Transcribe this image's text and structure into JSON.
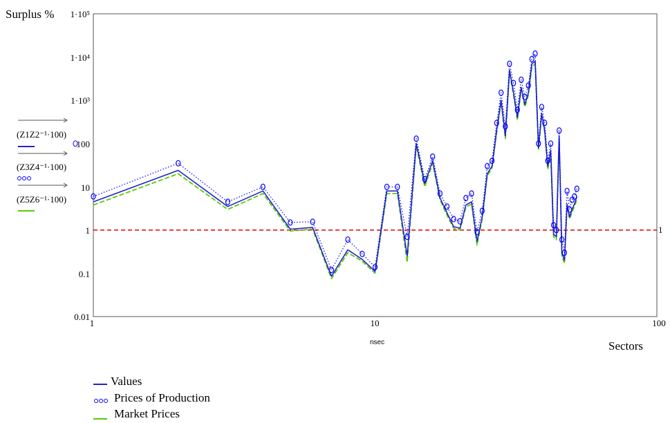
{
  "chart_data": {
    "type": "line",
    "title": "Surplus %",
    "xlabel": "Sectors",
    "x_var_label": "nsec",
    "xscale": "log",
    "yscale": "log",
    "xlim": [
      1,
      100
    ],
    "ylim": [
      0.01,
      100000
    ],
    "x_ticks": [
      "1",
      "10",
      "100"
    ],
    "y_ticks": [
      "0.01",
      "0.1",
      "1",
      "10",
      "100",
      "1·10³",
      "1·10⁴",
      "1·10⁵"
    ],
    "reference_line": {
      "y": 1,
      "color": "#e00000",
      "style": "dashed",
      "label": "1"
    },
    "y_trace_labels": [
      "(Z1Z2⁻¹·100)",
      "(Z3Z4⁻¹·100)",
      "(Z5Z6⁻¹·100)"
    ],
    "legend_position": "bottom-left",
    "series": [
      {
        "name": "Values",
        "color": "#2222cc",
        "style": "solid",
        "x": [
          1,
          2,
          3,
          4,
          5,
          6,
          7,
          8,
          9,
          10,
          11,
          12,
          13,
          14,
          15,
          16,
          17,
          18,
          19,
          20,
          21,
          22,
          23,
          24,
          25,
          26,
          27,
          28,
          29,
          30,
          31,
          32,
          33,
          34,
          35,
          36,
          37,
          38,
          39,
          40,
          41,
          42,
          43,
          44,
          45,
          46,
          47,
          48,
          49,
          50,
          51,
          52
        ],
        "y": [
          4.5,
          24,
          3.5,
          8,
          1.05,
          1.15,
          0.085,
          0.35,
          0.21,
          0.11,
          8,
          8,
          0.25,
          100,
          12,
          40,
          5.5,
          2.5,
          1.2,
          1.1,
          3.8,
          4.5,
          0.55,
          2,
          20,
          30,
          200,
          1000,
          150,
          5000,
          1500,
          400,
          2000,
          800,
          1500,
          7000,
          8000,
          80,
          500,
          200,
          30,
          70,
          0.8,
          0.7,
          150,
          0.3,
          0.2,
          4,
          2,
          3,
          4,
          6
        ]
      },
      {
        "name": "Prices of Production",
        "color": "#0000ff",
        "style": "dotted-circles",
        "x": [
          1,
          2,
          3,
          4,
          5,
          6,
          7,
          8,
          9,
          10,
          11,
          12,
          13,
          14,
          15,
          16,
          17,
          18,
          19,
          20,
          21,
          22,
          23,
          24,
          25,
          26,
          27,
          28,
          29,
          30,
          31,
          32,
          33,
          34,
          35,
          36,
          37,
          38,
          39,
          40,
          41,
          42,
          43,
          44,
          45,
          46,
          47,
          48,
          49,
          50,
          51,
          52
        ],
        "y": [
          6,
          35,
          4.5,
          10,
          1.5,
          1.55,
          0.12,
          0.6,
          0.28,
          0.14,
          10,
          10,
          0.7,
          130,
          15,
          50,
          7,
          3.5,
          1.8,
          1.6,
          5.5,
          7,
          0.9,
          2.8,
          30,
          40,
          300,
          1500,
          250,
          7000,
          2500,
          600,
          3000,
          1200,
          2200,
          9000,
          12000,
          100,
          700,
          300,
          40,
          100,
          1.3,
          1,
          200,
          0.6,
          0.3,
          8,
          3,
          5,
          6,
          9
        ]
      },
      {
        "name": "Market Prices",
        "color": "#55cc00",
        "style": "dashed",
        "x": [
          1,
          2,
          3,
          4,
          5,
          6,
          7,
          8,
          9,
          10,
          11,
          12,
          13,
          14,
          15,
          16,
          17,
          18,
          19,
          20,
          21,
          22,
          23,
          24,
          25,
          26,
          27,
          28,
          29,
          30,
          31,
          32,
          33,
          34,
          35,
          36,
          37,
          38,
          39,
          40,
          41,
          42,
          43,
          44,
          45,
          46,
          47,
          48,
          49,
          50,
          51,
          52
        ],
        "y": [
          3.8,
          20,
          3,
          7,
          0.95,
          1.05,
          0.075,
          0.3,
          0.19,
          0.1,
          7,
          7,
          0.18,
          90,
          10,
          35,
          5,
          2.2,
          1.1,
          1.0,
          3.4,
          4,
          0.45,
          1.8,
          18,
          27,
          180,
          900,
          130,
          4500,
          1300,
          350,
          1800,
          700,
          1300,
          6000,
          7000,
          70,
          450,
          180,
          25,
          60,
          0.7,
          0.6,
          130,
          0.25,
          0.17,
          3.5,
          1.8,
          2.6,
          3.5,
          5
        ]
      }
    ]
  }
}
